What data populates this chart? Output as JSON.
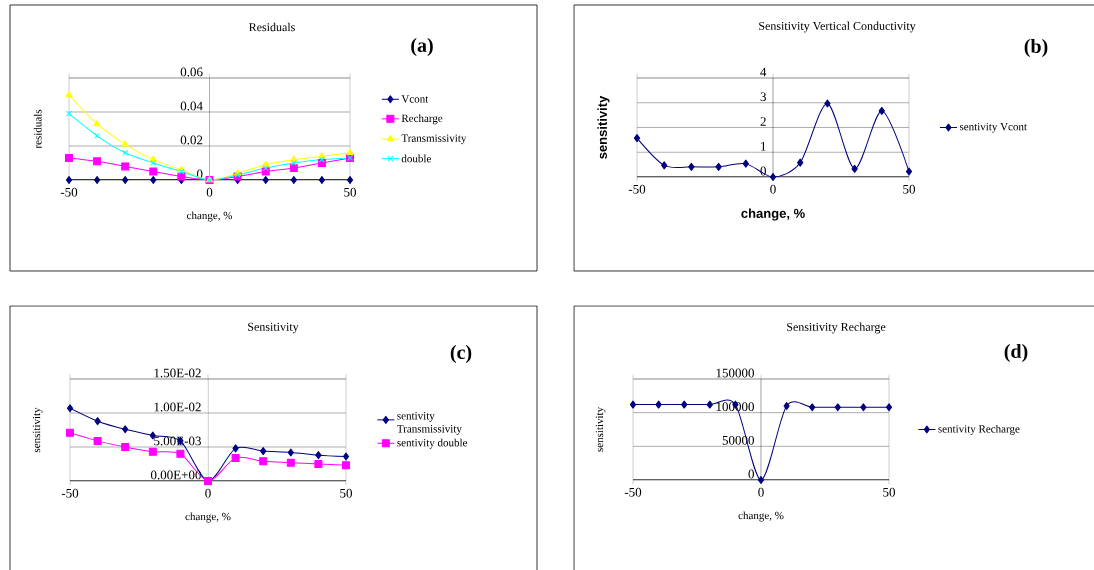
{
  "chart_data": [
    {
      "type": "line",
      "title": "Residuals",
      "xlabel": "change, %",
      "ylabel": "residuals",
      "annotations": [
        "(a)"
      ],
      "x": [
        -50,
        -40,
        -30,
        -20,
        -10,
        0,
        10,
        20,
        30,
        40,
        50
      ],
      "xlim": [
        -50,
        50
      ],
      "xticks": [
        -50,
        0,
        50
      ],
      "ylim": [
        0,
        0.06
      ],
      "yticks": [
        0,
        0.02,
        0.04,
        0.06
      ],
      "grid": "y",
      "legend": "right",
      "series": [
        {
          "name": "Vcont",
          "color": "#000080",
          "marker": "diamond",
          "values": [
            0,
            0,
            0,
            0,
            0,
            0,
            0,
            0,
            0,
            0,
            0
          ]
        },
        {
          "name": "Recharge",
          "color": "#ff00ff",
          "marker": "square",
          "values": [
            0.013,
            0.011,
            0.008,
            0.005,
            0.002,
            0,
            0.002,
            0.005,
            0.007,
            0.01,
            0.013
          ]
        },
        {
          "name": "Transmissivity",
          "color": "#ffff00",
          "marker": "triangle",
          "values": [
            0.05,
            0.033,
            0.021,
            0.012,
            0.006,
            0,
            0.004,
            0.009,
            0.012,
            0.014,
            0.016
          ]
        },
        {
          "name": "double",
          "color": "#00ffff",
          "marker": "cross",
          "values": [
            0.039,
            0.026,
            0.016,
            0.01,
            0.005,
            0,
            0.003,
            0.007,
            0.01,
            0.012,
            0.013
          ]
        }
      ]
    },
    {
      "type": "line",
      "title": "Sensitivity Vertical Conductivity",
      "xlabel": "change, %",
      "ylabel": "sensitivity",
      "annotations": [
        "(b)"
      ],
      "x": [
        -50,
        -40,
        -30,
        -20,
        -10,
        0,
        10,
        20,
        30,
        40,
        50
      ],
      "xlim": [
        -50,
        50
      ],
      "xticks": [
        -50,
        0,
        50
      ],
      "ylim": [
        0,
        4
      ],
      "yticks": [
        0,
        1,
        2,
        3,
        4
      ],
      "grid": "y",
      "legend": "right",
      "series": [
        {
          "name": "sentivity Vcont",
          "color": "#000080",
          "marker": "diamond",
          "values": [
            1.57,
            0.47,
            0.41,
            0.41,
            0.54,
            0,
            0.58,
            2.97,
            0.33,
            2.67,
            0.22
          ]
        }
      ]
    },
    {
      "type": "line",
      "title": "Sensitivity",
      "xlabel": "change, %",
      "ylabel": "sensitivity",
      "annotations": [
        "(c)"
      ],
      "x": [
        -50,
        -40,
        -30,
        -20,
        -10,
        0,
        10,
        20,
        30,
        40,
        50
      ],
      "xlim": [
        -50,
        50
      ],
      "xticks": [
        -50,
        0,
        50
      ],
      "ylim": [
        0,
        0.015
      ],
      "yticks": [
        {
          "value": 0,
          "label": "0.00E+00"
        },
        {
          "value": 0.005,
          "label": "5.00E-03"
        },
        {
          "value": 0.01,
          "label": "1.00E-02"
        },
        {
          "value": 0.015,
          "label": "1.50E-02"
        }
      ],
      "grid": "y",
      "legend": "right",
      "series": [
        {
          "name": "sentivity Transmissivity",
          "color": "#000080",
          "marker": "diamond",
          "values": [
            0.0107,
            0.0088,
            0.0076,
            0.0067,
            0.0059,
            0,
            0.0048,
            0.0044,
            0.0042,
            0.0038,
            0.0036
          ]
        },
        {
          "name": "sentivity double",
          "color": "#ff00ff",
          "marker": "square",
          "values": [
            0.0071,
            0.0059,
            0.005,
            0.0043,
            0.004,
            0,
            0.0034,
            0.0029,
            0.0027,
            0.0025,
            0.0023
          ]
        }
      ]
    },
    {
      "type": "line",
      "title": "Sensitivity Recharge",
      "xlabel": "change, %",
      "ylabel": "sensitivity",
      "annotations": [
        "(d)"
      ],
      "x": [
        -50,
        -40,
        -30,
        -20,
        -10,
        0,
        10,
        20,
        30,
        40,
        50
      ],
      "xlim": [
        -50,
        50
      ],
      "xticks": [
        -50,
        0,
        50
      ],
      "ylim": [
        0,
        150000
      ],
      "yticks": [
        0,
        50000,
        100000,
        150000
      ],
      "grid": "y",
      "legend": "right",
      "series": [
        {
          "name": "sentivity Recharge",
          "color": "#000080",
          "marker": "diamond",
          "values": [
            112000,
            112000,
            112000,
            112000,
            112000,
            0,
            110000,
            108000,
            108000,
            108000,
            108000
          ]
        }
      ]
    }
  ]
}
